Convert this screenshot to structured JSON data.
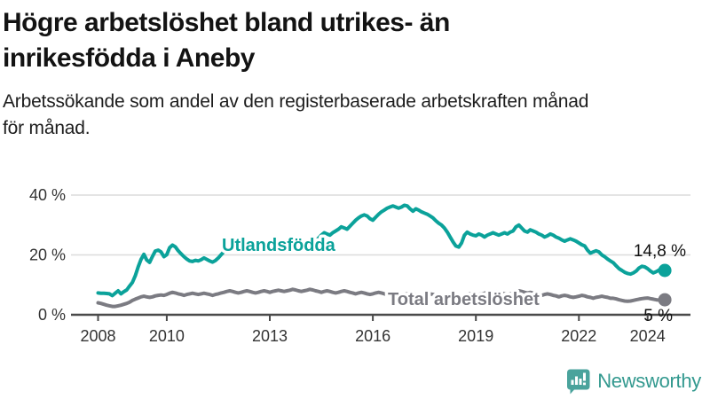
{
  "header": {
    "title_line1": "Högre arbetslöshet bland utrikes- än",
    "title_line2": "inrikesfödda i Aneby",
    "subtitle_line1": "Arbetssökande som andel av den registerbaserade arbetskraften månad",
    "subtitle_line2": "för månad."
  },
  "colors": {
    "accent_teal": "#0ba29a",
    "series_gray": "#7b7b82",
    "grid": "#dcdcdc",
    "axis": "#4a4a4a",
    "tick_text": "#333333",
    "brand_teal": "#33998f"
  },
  "chart_data": {
    "type": "line",
    "title": "Högre arbetslöshet bland utrikes- än inrikesfödda i Aneby",
    "subtitle": "Arbetssökande som andel av den registerbaserade arbetskraften månad för månad.",
    "x_unit": "month",
    "x_start_year": 2008,
    "x_tick_years": [
      2008,
      2010,
      2013,
      2016,
      2019,
      2022,
      2024
    ],
    "x_tick_labels": [
      "2008",
      "2010",
      "2013",
      "2016",
      "2019",
      "2022",
      "2024"
    ],
    "y_tick_labels": [
      "0 %",
      "20 %",
      "40 %"
    ],
    "y_tick_values": [
      0,
      20,
      40
    ],
    "ylim": [
      0,
      44
    ],
    "grid": true,
    "series": [
      {
        "name": "Total arbetslöshet",
        "color": "#7b7b82",
        "end_label": "5 %",
        "end_value": 5.0,
        "values": [
          4.0,
          3.8,
          3.5,
          3.2,
          3.0,
          2.8,
          2.8,
          3.0,
          3.2,
          3.5,
          3.8,
          4.2,
          4.8,
          5.2,
          5.6,
          6.0,
          6.2,
          6.0,
          5.8,
          6.0,
          6.3,
          6.5,
          6.6,
          6.5,
          6.8,
          7.2,
          7.5,
          7.3,
          7.0,
          6.8,
          6.5,
          6.8,
          7.0,
          7.2,
          7.0,
          6.8,
          7.0,
          7.2,
          7.0,
          6.8,
          6.5,
          6.8,
          7.0,
          7.3,
          7.5,
          7.8,
          8.0,
          7.8,
          7.5,
          7.3,
          7.5,
          7.8,
          8.0,
          7.8,
          7.5,
          7.3,
          7.5,
          7.8,
          8.0,
          7.8,
          7.5,
          7.8,
          8.0,
          8.2,
          8.0,
          7.8,
          8.0,
          8.2,
          8.5,
          8.3,
          8.0,
          7.8,
          8.0,
          8.2,
          8.5,
          8.3,
          8.0,
          7.8,
          7.5,
          7.8,
          8.0,
          7.8,
          7.5,
          7.3,
          7.5,
          7.8,
          8.0,
          7.8,
          7.5,
          7.3,
          7.0,
          7.3,
          7.5,
          7.3,
          7.0,
          6.8,
          7.0,
          7.3,
          7.5,
          7.3,
          7.0,
          6.8,
          7.0,
          7.3,
          7.0,
          6.8,
          6.5,
          6.8,
          7.0,
          7.2,
          7.0,
          6.8,
          6.5,
          6.3,
          6.5,
          6.8,
          7.0,
          6.8,
          6.5,
          6.3,
          6.5,
          6.8,
          6.5,
          6.3,
          6.0,
          5.8,
          6.0,
          6.3,
          6.5,
          6.8,
          7.0,
          6.8,
          6.5,
          6.8,
          7.0,
          7.2,
          7.5,
          7.3,
          7.5,
          7.8,
          7.5,
          7.3,
          7.0,
          6.8,
          7.0,
          7.3,
          7.8,
          8.0,
          7.8,
          7.5,
          7.3,
          7.5,
          7.3,
          7.0,
          6.8,
          6.5,
          6.8,
          7.0,
          6.8,
          6.5,
          6.3,
          6.0,
          6.3,
          6.5,
          6.3,
          6.0,
          5.8,
          6.0,
          6.2,
          6.5,
          6.3,
          6.0,
          5.8,
          5.5,
          5.8,
          6.0,
          6.2,
          6.0,
          5.8,
          5.5,
          5.5,
          5.3,
          5.0,
          4.8,
          4.6,
          4.5,
          4.6,
          4.8,
          5.0,
          5.2,
          5.4,
          5.5,
          5.6,
          5.4,
          5.2,
          5.0,
          4.9,
          4.9,
          5.0
        ]
      },
      {
        "name": "Utlandsfödda",
        "color": "#0ba29a",
        "end_label": "14,8 %",
        "end_value": 14.8,
        "values": [
          7.3,
          7.2,
          7.2,
          7.1,
          7.0,
          6.4,
          7.2,
          8.0,
          7.0,
          7.7,
          8.3,
          9.6,
          10.8,
          13.0,
          16.0,
          18.5,
          20.2,
          18.3,
          17.5,
          19.5,
          21.3,
          21.6,
          21.0,
          19.4,
          20.1,
          22.4,
          23.3,
          22.7,
          21.4,
          20.4,
          19.4,
          18.6,
          18.0,
          17.8,
          18.2,
          18.0,
          18.4,
          19.0,
          18.5,
          18.0,
          17.6,
          18.1,
          19.0,
          20.1,
          21.1,
          22.1,
          23.1,
          23.5,
          22.9,
          21.6,
          22.1,
          23.4,
          23.9,
          23.0,
          22.1,
          21.6,
          22.1,
          22.6,
          23.0,
          22.4,
          22.0,
          22.6,
          23.1,
          23.6,
          24.0,
          24.4,
          24.0,
          23.4,
          24.0,
          24.6,
          25.0,
          24.4,
          23.9,
          23.4,
          23.1,
          23.6,
          24.6,
          25.6,
          26.6,
          27.4,
          27.0,
          26.6,
          27.4,
          28.0,
          28.6,
          29.4,
          29.0,
          28.6,
          29.6,
          30.6,
          31.6,
          32.4,
          33.0,
          33.4,
          33.0,
          32.1,
          31.6,
          32.6,
          33.6,
          34.4,
          35.0,
          35.6,
          36.0,
          36.4,
          36.0,
          35.6,
          36.0,
          36.6,
          36.4,
          35.4,
          34.6,
          35.4,
          35.0,
          34.4,
          34.0,
          33.6,
          33.0,
          32.4,
          31.4,
          30.6,
          30.0,
          29.0,
          27.6,
          26.0,
          24.4,
          23.0,
          22.6,
          24.0,
          26.6,
          27.6,
          27.0,
          26.6,
          26.4,
          27.0,
          26.6,
          26.0,
          26.6,
          27.0,
          27.4,
          27.0,
          26.6,
          27.0,
          27.4,
          27.0,
          27.6,
          28.0,
          29.4,
          30.0,
          29.0,
          28.0,
          27.6,
          28.4,
          28.0,
          27.6,
          27.0,
          26.6,
          26.0,
          26.4,
          27.0,
          26.6,
          26.0,
          25.6,
          25.0,
          24.6,
          25.0,
          25.4,
          25.0,
          24.6,
          24.0,
          23.4,
          23.0,
          21.6,
          20.6,
          21.0,
          21.4,
          21.0,
          20.0,
          19.4,
          18.6,
          18.0,
          17.4,
          16.4,
          15.4,
          14.8,
          14.2,
          13.8,
          13.6,
          14.0,
          14.6,
          15.6,
          16.2,
          16.0,
          15.4,
          14.6,
          14.0,
          14.4,
          15.0,
          15.4,
          14.8
        ]
      }
    ],
    "legend_position": "inline-labels"
  },
  "footer": {
    "brand": "Newsworthy"
  }
}
